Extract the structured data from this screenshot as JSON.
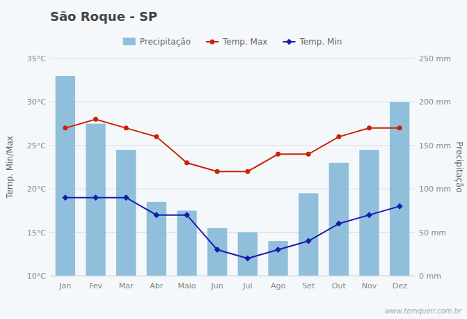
{
  "chart_data": {
    "type": "bar",
    "title": "São Roque - SP",
    "categories": [
      "Jan",
      "Fev",
      "Mar",
      "Abr",
      "Maio",
      "Jun",
      "Jul",
      "Ago",
      "Set",
      "Out",
      "Nov",
      "Dez"
    ],
    "series": [
      {
        "name": "Precipitação",
        "type": "bar",
        "axis": "y2",
        "color": "#85b8d8",
        "values": [
          230,
          175,
          145,
          85,
          75,
          55,
          50,
          40,
          95,
          130,
          145,
          200
        ]
      },
      {
        "name": "Temp. Max",
        "type": "line",
        "color": "#cc2200",
        "marker": "circle",
        "values": [
          27,
          28,
          27,
          26,
          23,
          22,
          22,
          24,
          24,
          26,
          27,
          27
        ]
      },
      {
        "name": "Temp. Min",
        "type": "line",
        "color": "#1a1aaa",
        "marker": "diamond",
        "values": [
          19,
          19,
          19,
          17,
          17,
          13,
          12,
          13,
          14,
          16,
          17,
          18
        ]
      }
    ],
    "ylabel": "Temp. Min/Max",
    "y2label": "Precipitação",
    "ylim": [
      10,
      35
    ],
    "yticks": [
      {
        "value": 10,
        "label": "10°C"
      },
      {
        "value": 15,
        "label": "15°C"
      },
      {
        "value": 20,
        "label": "20°C"
      },
      {
        "value": 25,
        "label": "25°C"
      },
      {
        "value": 30,
        "label": "30°C"
      },
      {
        "value": 35,
        "label": "35°C"
      }
    ],
    "y2lim": [
      0,
      250
    ],
    "y2ticks": [
      {
        "value": 0,
        "label": "0 mm"
      },
      {
        "value": 50,
        "label": "50 mm"
      },
      {
        "value": 100,
        "label": "100 mm"
      },
      {
        "value": 150,
        "label": "150 mm"
      },
      {
        "value": 200,
        "label": "200 mm"
      },
      {
        "value": 250,
        "label": "250 mm"
      }
    ],
    "grid": true,
    "legend": "top",
    "annotations": [
      "www.temqueir.com.br"
    ]
  }
}
